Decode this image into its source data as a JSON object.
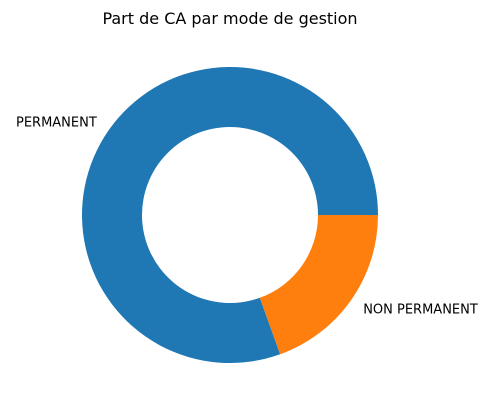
{
  "chart_data": {
    "type": "pie",
    "title": "Part de CA par mode de gestion",
    "donut": true,
    "categories": [
      "PERMANENT",
      "NON PERMANENT"
    ],
    "values": [
      80.5,
      19.5
    ],
    "value_unit": "%",
    "colors": [
      "#1f77b4",
      "#ff7f0e"
    ],
    "start_angle_deg": 0,
    "direction": "counterclockwise",
    "legend": "none"
  }
}
